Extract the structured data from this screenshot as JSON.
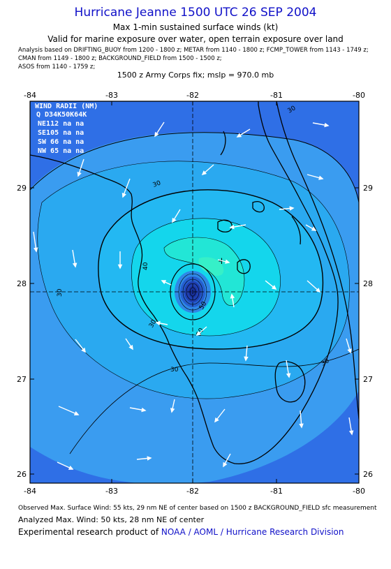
{
  "header": {
    "title": "Hurricane Jeanne 1500 UTC 26 SEP 2004",
    "subtitle": "Max 1-min sustained surface winds (kt)",
    "valid": "Valid for marine exposure over water, open terrain exposure over land",
    "analysis_line1": "Analysis based on  DRIFTING_BUOY from 1200 - 1800 z;  METAR from 1140 - 1800 z;  FCMP_TOWER from 1143 - 1749 z;",
    "analysis_line2": "CMAN from 1149 - 1800 z;  BACKGROUND_FIELD from 1500 - 1500 z;",
    "analysis_line3": "ASOS from 1140 - 1759 z;",
    "fix": "1500 z Army Corps fix; mslp = 970.0 mb"
  },
  "map": {
    "lon_ticks": [
      "-84",
      "-83",
      "-82",
      "-81",
      "-80"
    ],
    "lat_ticks": [
      "29",
      "28",
      "27",
      "26"
    ],
    "contour_labels": [
      "30",
      "30",
      "30",
      "30",
      "30",
      "40",
      "50",
      "50",
      "30"
    ],
    "center_marker": "+",
    "wind_radii": {
      "header": "WIND RADII (NM)",
      "columns": "Q D34K50K64K",
      "rows": [
        {
          "quad": "NE",
          "r34": "112",
          "r50": "na",
          "r64": "na"
        },
        {
          "quad": "SE",
          "r34": "105",
          "r50": "na",
          "r64": "na"
        },
        {
          "quad": "SW",
          "r34": "66",
          "r50": "na",
          "r64": "na"
        },
        {
          "quad": "NW",
          "r34": "65",
          "r50": "na",
          "r64": "na"
        }
      ]
    },
    "colors": {
      "outer": "#2f6fe6",
      "band1": "#3a9cf0",
      "band2": "#23b8f2",
      "band3": "#14d6ec",
      "band4": "#22e6d6",
      "core": "#1f3fb0",
      "land_line": "#000000"
    }
  },
  "footer": {
    "observed": "Observed Max. Surface Wind: 55 kts, 29 nm NE of center based on 1500 z BACKGROUND_FIELD sfc measurement",
    "analyzed": "Analyzed Max. Wind: 50 kts, 28 nm NE of center",
    "credit_prefix": "Experimental research product of ",
    "credit_org": "NOAA / AOML / Hurricane Research Division"
  }
}
